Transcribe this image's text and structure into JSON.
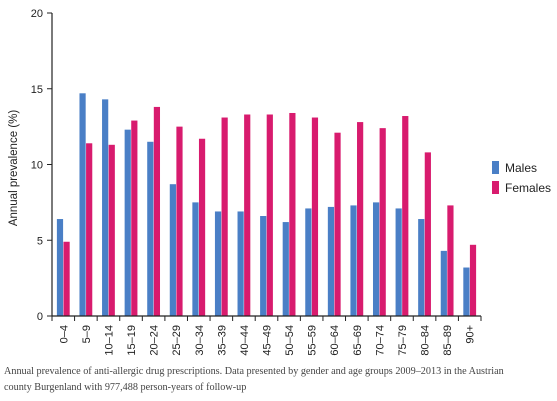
{
  "chart_data": {
    "type": "bar",
    "title": "",
    "xlabel": "",
    "ylabel": "Annual prevalence (%)",
    "ylim": [
      0,
      20
    ],
    "yticks": [
      "0",
      "5",
      "10",
      "15",
      "20"
    ],
    "grid": false,
    "legend_position": "right",
    "categories": [
      "0–4",
      "5–9",
      "10–14",
      "15–19",
      "20–24",
      "25–29",
      "30–34",
      "35–39",
      "40–44",
      "45–49",
      "50–54",
      "55–59",
      "60–64",
      "65–69",
      "70–74",
      "75–79",
      "80–84",
      "85–89",
      "90+"
    ],
    "series": [
      {
        "name": "Males",
        "color": "#4a7fc6",
        "values": [
          6.4,
          14.7,
          14.3,
          12.3,
          11.5,
          8.7,
          7.5,
          6.9,
          6.9,
          6.6,
          6.2,
          7.1,
          7.2,
          7.3,
          7.5,
          7.1,
          6.4,
          4.3,
          3.2
        ]
      },
      {
        "name": "Females",
        "color": "#d81b6e",
        "values": [
          4.9,
          11.4,
          11.3,
          12.9,
          13.8,
          12.5,
          11.7,
          13.1,
          13.3,
          13.3,
          13.4,
          13.1,
          12.1,
          12.8,
          12.4,
          13.2,
          10.8,
          7.3,
          4.7
        ]
      }
    ]
  },
  "caption": {
    "line1": "Annual prevalence of anti-allergic drug prescriptions. Data presented by gender and age groups 2009–2013 in the Austrian",
    "line2": "county Burgenland with 977,488 person-years of follow-up"
  }
}
